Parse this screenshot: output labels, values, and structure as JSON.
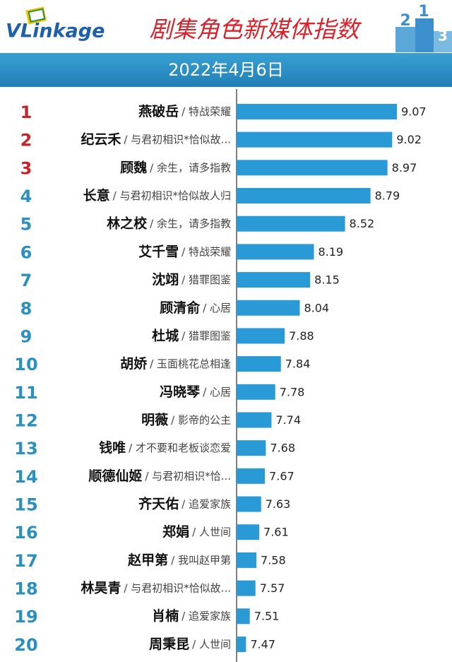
{
  "chart_data": {
    "type": "bar",
    "orientation": "horizontal",
    "brand": "VLinkage",
    "title": "剧集角色新媒体指数",
    "subtitle": "2022年4月6日",
    "podium_labels": [
      "2",
      "1",
      "3"
    ],
    "ranks": [
      1,
      2,
      3,
      4,
      5,
      6,
      7,
      8,
      9,
      10,
      11,
      12,
      13,
      14,
      15,
      16,
      17,
      18,
      19,
      20
    ],
    "rank_colors": [
      "#c8232b",
      "#c8232b",
      "#c8232b",
      "#2b8fc0",
      "#2b8fc0",
      "#2b8fc0",
      "#2b8fc0",
      "#2b8fc0",
      "#2b8fc0",
      "#2b8fc0",
      "#2b8fc0",
      "#2b8fc0",
      "#2b8fc0",
      "#2b8fc0",
      "#2b8fc0",
      "#2b8fc0",
      "#2b8fc0",
      "#2b8fc0",
      "#2b8fc0",
      "#2b8fc0"
    ],
    "categories": [
      "燕破岳",
      "纪云禾",
      "顾魏",
      "长意",
      "林之校",
      "艾千雪",
      "沈翊",
      "顾清俞",
      "杜城",
      "胡娇",
      "冯晓琴",
      "明薇",
      "钱唯",
      "顺德仙姬",
      "齐天佑",
      "郑娟",
      "赵甲第",
      "林昊青",
      "肖楠",
      "周秉昆"
    ],
    "dramas": [
      "/ 特战荣耀",
      "/ 与君初相识*恰似故...",
      "/ 余生，请多指教",
      "/ 与君初相识*恰似故人归",
      "/ 余生，请多指教",
      "/ 特战荣耀",
      "/ 猎罪图鉴",
      "/ 心居",
      "/ 猎罪图鉴",
      "/ 玉面桃花总相逢",
      "/ 心居",
      "/ 影帝的公主",
      "/ 才不要和老板谈恋爱",
      "/ 与君初相识*恰...",
      "/ 追爱家族",
      "/ 人世间",
      "/ 我叫赵甲第",
      "/ 与君初相识*恰似故...",
      "/ 追爱家族",
      "/ 人世间"
    ],
    "values": [
      9.07,
      9.02,
      8.97,
      8.79,
      8.52,
      8.19,
      8.15,
      8.04,
      7.88,
      7.84,
      7.78,
      7.74,
      7.68,
      7.67,
      7.63,
      7.61,
      7.58,
      7.57,
      7.51,
      7.47
    ],
    "color": "#2a9ad6",
    "xlim": [
      7.37,
      9.1
    ]
  }
}
